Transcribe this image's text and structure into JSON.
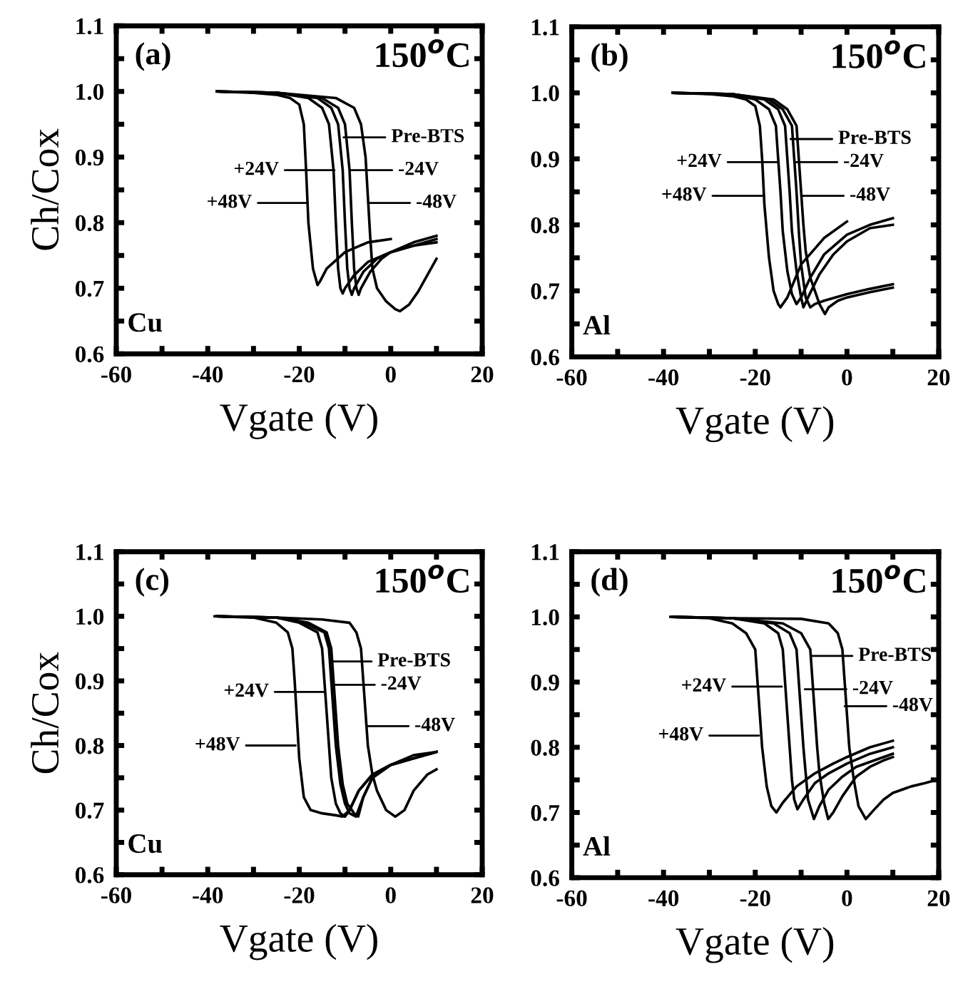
{
  "chart_data": [
    {
      "type": "line",
      "title": "(a)",
      "subtitle": "150$^{o}$C",
      "xlabel": "Vgate (V)",
      "ylabel": "Ch/Cox",
      "xlim": [
        -60,
        20
      ],
      "ylim": [
        0.6,
        1.1
      ],
      "xticks": [
        -60,
        {
          "value": -50,
          "label": null
        },
        -40,
        {
          "value": -30,
          "label": null
        },
        -20,
        {
          "value": -10,
          "label": null
        },
        0,
        {
          "value": 10,
          "label": null
        },
        20
      ],
      "yticks": [
        {
          "value": 0.6,
          "label": "0.6"
        },
        {
          "value": 0.65,
          "label": null
        },
        {
          "value": 0.7,
          "label": "0.7"
        },
        {
          "value": 0.75,
          "label": null
        },
        {
          "value": 0.8,
          "label": "0.8"
        },
        {
          "value": 0.85,
          "label": null
        },
        {
          "value": 0.9,
          "label": "0.9"
        },
        {
          "value": 0.95,
          "label": null
        },
        {
          "value": 1.0,
          "label": "1.0"
        },
        {
          "value": 1.05,
          "label": null
        },
        {
          "value": 1.1,
          "label": "1.1"
        }
      ],
      "marker": "none",
      "line_style": "solid",
      "series": [
        {
          "color": "#000000",
          "x": [
            -38,
            -30,
            -25,
            -22,
            -20,
            -19,
            -18.5,
            -18,
            -17,
            -16,
            -15.5,
            -14,
            -10,
            -5,
            0
          ],
          "values": [
            1.0,
            0.998,
            0.995,
            0.99,
            0.98,
            0.95,
            0.88,
            0.8,
            0.73,
            0.705,
            0.71,
            0.73,
            0.755,
            0.77,
            0.775
          ]
        },
        {
          "color": "#000000",
          "x": [
            -38,
            -25,
            -18,
            -15,
            -13.5,
            -12.5,
            -12,
            -11.5,
            -11,
            -10.5,
            -10,
            -8,
            -5,
            0,
            5,
            10
          ],
          "values": [
            1.0,
            0.998,
            0.99,
            0.975,
            0.95,
            0.88,
            0.8,
            0.73,
            0.7,
            0.692,
            0.7,
            0.72,
            0.74,
            0.755,
            0.765,
            0.77
          ]
        },
        {
          "color": "#000000",
          "x": [
            -38,
            -25,
            -16,
            -13,
            -11.5,
            -10.5,
            -10,
            -9.5,
            -9,
            -8.5,
            -8,
            -6,
            -3,
            0,
            5,
            10
          ],
          "values": [
            1.0,
            0.998,
            0.99,
            0.975,
            0.95,
            0.88,
            0.8,
            0.73,
            0.7,
            0.69,
            0.7,
            0.725,
            0.745,
            0.755,
            0.765,
            0.775
          ]
        },
        {
          "color": "#000000",
          "x": [
            -38,
            -25,
            -15,
            -11.5,
            -10,
            -9,
            -8.5,
            -8,
            -7.5,
            -7,
            -6.5,
            -4.5,
            -2,
            0,
            5,
            10
          ],
          "values": [
            1.0,
            0.998,
            0.99,
            0.975,
            0.95,
            0.88,
            0.8,
            0.73,
            0.7,
            0.69,
            0.7,
            0.725,
            0.745,
            0.755,
            0.77,
            0.78
          ]
        },
        {
          "color": "#000000",
          "x": [
            -38,
            -25,
            -12,
            -8,
            -6.5,
            -5.5,
            -5,
            -4.5,
            -4,
            -3,
            -1,
            1,
            2,
            4,
            6,
            8,
            10
          ],
          "values": [
            1.0,
            0.998,
            0.99,
            0.975,
            0.95,
            0.9,
            0.84,
            0.78,
            0.73,
            0.7,
            0.68,
            0.668,
            0.665,
            0.675,
            0.695,
            0.72,
            0.745
          ]
        }
      ],
      "annotations": [
        "Cu",
        {
          "text": "Pre-BTS",
          "x": -10.3,
          "y": 0.93
        },
        {
          "text": "+24V",
          "x": -12.3,
          "y": 0.88
        },
        {
          "text": "-24V",
          "x": -8.8,
          "y": 0.88
        },
        {
          "text": "+48V",
          "x": -18.2,
          "y": 0.83
        },
        {
          "text": "-48V",
          "x": -4.9,
          "y": 0.83
        }
      ]
    },
    {
      "type": "line",
      "title": "(b)",
      "subtitle": "150$^{o}$C",
      "xlabel": "Vgate (V)",
      "xlim": [
        -60,
        20
      ],
      "ylim": [
        0.6,
        1.1
      ],
      "xticks": [
        -60,
        {
          "value": -50,
          "label": null
        },
        -40,
        {
          "value": -30,
          "label": null
        },
        -20,
        {
          "value": -10,
          "label": null
        },
        0,
        {
          "value": 10,
          "label": null
        },
        20
      ],
      "yticks": [
        {
          "value": 0.6,
          "label": "0.6"
        },
        {
          "value": 0.65,
          "label": null
        },
        {
          "value": 0.7,
          "label": "0.7"
        },
        {
          "value": 0.75,
          "label": null
        },
        {
          "value": 0.8,
          "label": "0.8"
        },
        {
          "value": 0.85,
          "label": null
        },
        {
          "value": 0.9,
          "label": "0.9"
        },
        {
          "value": 0.95,
          "label": null
        },
        {
          "value": 1.0,
          "label": "1.0"
        },
        {
          "value": 1.05,
          "label": null
        },
        {
          "value": 1.1,
          "label": "1.1"
        }
      ],
      "marker": "none",
      "line_style": "solid",
      "series": [
        {
          "color": "#000000",
          "x": [
            -38,
            -30,
            -25,
            -22,
            -20,
            -19,
            -18.5,
            -18,
            -17,
            -16,
            -15,
            -14.5,
            -13,
            -10,
            -5,
            0
          ],
          "values": [
            1.0,
            0.998,
            0.995,
            0.99,
            0.98,
            0.95,
            0.9,
            0.83,
            0.75,
            0.7,
            0.68,
            0.675,
            0.69,
            0.74,
            0.78,
            0.805
          ]
        },
        {
          "color": "#000000",
          "x": [
            -38,
            -25,
            -20,
            -17,
            -15.5,
            -15,
            -14.5,
            -14,
            -13,
            -12,
            -11,
            -10,
            -8,
            -5,
            0,
            5,
            10
          ],
          "values": [
            1.0,
            0.998,
            0.99,
            0.975,
            0.95,
            0.9,
            0.85,
            0.79,
            0.73,
            0.695,
            0.68,
            0.69,
            0.72,
            0.755,
            0.785,
            0.8,
            0.81
          ]
        },
        {
          "color": "#000000",
          "x": [
            -38,
            -25,
            -18,
            -15,
            -13.5,
            -13,
            -12.5,
            -12,
            -11,
            -10,
            -9.5,
            -8.5,
            -6,
            -3,
            0,
            5,
            10
          ],
          "values": [
            1.0,
            0.998,
            0.99,
            0.975,
            0.95,
            0.9,
            0.85,
            0.79,
            0.73,
            0.69,
            0.675,
            0.69,
            0.725,
            0.755,
            0.775,
            0.795,
            0.8
          ]
        },
        {
          "color": "#000000",
          "x": [
            -38,
            -25,
            -17,
            -14,
            -12,
            -11.5,
            -11,
            -10.5,
            -10,
            -9,
            -8,
            -7,
            -5,
            0,
            5,
            10
          ],
          "values": [
            1.0,
            0.998,
            0.99,
            0.975,
            0.95,
            0.9,
            0.85,
            0.79,
            0.74,
            0.69,
            0.675,
            0.68,
            0.685,
            0.695,
            0.703,
            0.71
          ]
        },
        {
          "color": "#000000",
          "x": [
            -38,
            -25,
            -16,
            -13,
            -11,
            -10.5,
            -10,
            -9.5,
            -9,
            -8,
            -6,
            -4.8,
            -4,
            -2,
            0,
            5,
            10
          ],
          "values": [
            1.0,
            0.998,
            0.99,
            0.975,
            0.95,
            0.9,
            0.85,
            0.8,
            0.76,
            0.72,
            0.68,
            0.665,
            0.675,
            0.685,
            0.69,
            0.698,
            0.705
          ]
        }
      ],
      "annotations": [
        "Al",
        {
          "text": "Pre-BTS",
          "x": -12.3,
          "y": 0.93
        },
        {
          "text": "+24V",
          "x": -15.2,
          "y": 0.895
        },
        {
          "text": "-24V",
          "x": -11.2,
          "y": 0.895
        },
        {
          "text": "+48V",
          "x": -18.5,
          "y": 0.844
        },
        {
          "text": "-48V",
          "x": -9.8,
          "y": 0.844
        }
      ]
    },
    {
      "type": "line",
      "title": "(c)",
      "subtitle": "150$^{o}$C",
      "xlabel": "Vgate (V)",
      "ylabel": "Ch/Cox",
      "xlim": [
        -60,
        20
      ],
      "ylim": [
        0.6,
        1.1
      ],
      "xticks": [
        -60,
        {
          "value": -50,
          "label": null
        },
        -40,
        {
          "value": -30,
          "label": null
        },
        -20,
        {
          "value": -10,
          "label": null
        },
        0,
        {
          "value": 10,
          "label": null
        },
        20
      ],
      "yticks": [
        {
          "value": 0.6,
          "label": "0.6"
        },
        {
          "value": 0.65,
          "label": null
        },
        {
          "value": 0.7,
          "label": "0.7"
        },
        {
          "value": 0.75,
          "label": null
        },
        {
          "value": 0.8,
          "label": "0.8"
        },
        {
          "value": 0.85,
          "label": null
        },
        {
          "value": 0.9,
          "label": "0.9"
        },
        {
          "value": 0.95,
          "label": null
        },
        {
          "value": 1.0,
          "label": "1.0"
        },
        {
          "value": 1.05,
          "label": null
        },
        {
          "value": 1.1,
          "label": "1.1"
        }
      ],
      "marker": "none",
      "line_style": "solid",
      "series": [
        {
          "color": "#000000",
          "x": [
            -38.5,
            -30,
            -25,
            -22.5,
            -21.5,
            -21,
            -20.5,
            -20,
            -19,
            -17.5,
            -15,
            -12,
            -10.5,
            -9,
            -7,
            -4,
            0,
            5,
            10
          ],
          "values": [
            1.0,
            0.998,
            0.99,
            0.975,
            0.95,
            0.9,
            0.84,
            0.78,
            0.72,
            0.7,
            0.695,
            0.692,
            0.69,
            0.7,
            0.73,
            0.755,
            0.77,
            0.78,
            0.79
          ]
        },
        {
          "color": "#000000",
          "x": [
            -38,
            -25,
            -20,
            -16,
            -15,
            -14.5,
            -14,
            -13.5,
            -13,
            -12,
            -11,
            -10,
            -9,
            -7,
            -4,
            0,
            5,
            10
          ],
          "values": [
            1.0,
            0.998,
            0.99,
            0.975,
            0.95,
            0.9,
            0.85,
            0.8,
            0.75,
            0.71,
            0.695,
            0.69,
            0.7,
            0.73,
            0.755,
            0.77,
            0.78,
            0.79
          ]
        },
        {
          "color": "#000000",
          "x": [
            -38,
            -25,
            -19,
            -14.5,
            -13.5,
            -13,
            -12.5,
            -12,
            -11,
            -10,
            -9,
            -7.6,
            -6,
            -4,
            0,
            5,
            10
          ],
          "values": [
            1.0,
            0.998,
            0.99,
            0.975,
            0.95,
            0.9,
            0.85,
            0.8,
            0.74,
            0.71,
            0.695,
            0.69,
            0.72,
            0.75,
            0.77,
            0.78,
            0.79
          ]
        },
        {
          "color": "#000000",
          "x": [
            -38,
            -25,
            -18,
            -14,
            -13,
            -12.5,
            -12,
            -11.5,
            -10.5,
            -9.5,
            -8,
            -7.1,
            -6,
            -4,
            0,
            5,
            10
          ],
          "values": [
            1.0,
            0.998,
            0.99,
            0.975,
            0.95,
            0.9,
            0.85,
            0.8,
            0.74,
            0.71,
            0.695,
            0.69,
            0.72,
            0.75,
            0.77,
            0.785,
            0.79
          ]
        },
        {
          "color": "#000000",
          "x": [
            -38,
            -25,
            -15,
            -9,
            -7.5,
            -6.5,
            -6,
            -5.5,
            -5,
            -4,
            -3,
            -1,
            1,
            3,
            5,
            8,
            10
          ],
          "values": [
            1.0,
            0.998,
            0.995,
            0.99,
            0.975,
            0.95,
            0.9,
            0.85,
            0.8,
            0.755,
            0.73,
            0.7,
            0.69,
            0.7,
            0.73,
            0.755,
            0.763
          ]
        }
      ],
      "annotations": [
        "Cu",
        {
          "text": "Pre-BTS",
          "x": -13.3,
          "y": 0.93
        },
        {
          "text": "+24V",
          "x": -14.5,
          "y": 0.883
        },
        {
          "text": "-24V",
          "x": -12.6,
          "y": 0.894
        },
        {
          "text": "+48V",
          "x": -20.8,
          "y": 0.8
        },
        {
          "text": "-48V",
          "x": -5.2,
          "y": 0.83
        }
      ]
    },
    {
      "type": "line",
      "title": "(d)",
      "subtitle": "150$^{o}$C",
      "xlabel": "Vgate (V)",
      "xlim": [
        -60,
        20
      ],
      "ylim": [
        0.6,
        1.1
      ],
      "xticks": [
        -60,
        {
          "value": -50,
          "label": null
        },
        -40,
        {
          "value": -30,
          "label": null
        },
        -20,
        {
          "value": -10,
          "label": null
        },
        0,
        {
          "value": 10,
          "label": null
        },
        20
      ],
      "yticks": [
        {
          "value": 0.6,
          "label": "0.6"
        },
        {
          "value": 0.65,
          "label": null
        },
        {
          "value": 0.7,
          "label": "0.7"
        },
        {
          "value": 0.75,
          "label": null
        },
        {
          "value": 0.8,
          "label": "0.8"
        },
        {
          "value": 0.85,
          "label": null
        },
        {
          "value": 0.9,
          "label": "0.9"
        },
        {
          "value": 0.95,
          "label": null
        },
        {
          "value": 1.0,
          "label": "1.0"
        },
        {
          "value": 1.05,
          "label": null
        },
        {
          "value": 1.1,
          "label": "1.1"
        }
      ],
      "marker": "none",
      "line_style": "solid",
      "series": [
        {
          "color": "#000000",
          "x": [
            -38.5,
            -30,
            -25,
            -22,
            -20,
            -19.5,
            -19,
            -18.5,
            -17.5,
            -16.5,
            -15.4,
            -14,
            -11,
            -7,
            -3,
            0,
            5,
            10
          ],
          "values": [
            1.0,
            0.998,
            0.99,
            0.975,
            0.95,
            0.9,
            0.85,
            0.8,
            0.74,
            0.71,
            0.7,
            0.715,
            0.74,
            0.76,
            0.775,
            0.785,
            0.8,
            0.81
          ]
        },
        {
          "color": "#000000",
          "x": [
            -38,
            -25,
            -18,
            -15,
            -14,
            -13.5,
            -13,
            -12.5,
            -12,
            -11.5,
            -10.8,
            -9.5,
            -7,
            -4,
            0,
            5,
            10
          ],
          "values": [
            1.0,
            0.998,
            0.99,
            0.975,
            0.95,
            0.9,
            0.85,
            0.8,
            0.75,
            0.72,
            0.705,
            0.72,
            0.745,
            0.76,
            0.775,
            0.79,
            0.8
          ]
        },
        {
          "color": "#000000",
          "x": [
            -38,
            -25,
            -16,
            -12.5,
            -11,
            -10.5,
            -10,
            -9.5,
            -9,
            -8.5,
            -7.2,
            -6,
            -4,
            -1,
            2,
            6,
            10
          ],
          "values": [
            1.0,
            0.998,
            0.99,
            0.975,
            0.95,
            0.9,
            0.85,
            0.8,
            0.76,
            0.72,
            0.69,
            0.71,
            0.735,
            0.755,
            0.77,
            0.78,
            0.79
          ]
        },
        {
          "color": "#000000",
          "x": [
            -38,
            -25,
            -14,
            -10,
            -8,
            -7.5,
            -7,
            -6.5,
            -6,
            -5,
            -4.1,
            -3,
            -1,
            2,
            5,
            8,
            10
          ],
          "values": [
            1.0,
            0.998,
            0.99,
            0.975,
            0.95,
            0.9,
            0.85,
            0.8,
            0.76,
            0.715,
            0.69,
            0.7,
            0.725,
            0.755,
            0.77,
            0.78,
            0.785
          ]
        },
        {
          "color": "#000000",
          "x": [
            -38,
            -25,
            -10,
            -4,
            -2,
            -1,
            -0.5,
            0,
            0.5,
            1.5,
            2.5,
            4.1,
            6,
            8,
            10,
            14,
            17,
            19.5
          ],
          "values": [
            1.0,
            0.998,
            0.997,
            0.99,
            0.975,
            0.95,
            0.9,
            0.85,
            0.8,
            0.75,
            0.71,
            0.69,
            0.705,
            0.72,
            0.73,
            0.74,
            0.745,
            0.75
          ]
        }
      ],
      "annotations": [
        "Al",
        {
          "text": "Pre-BTS",
          "x": -7.9,
          "y": 0.94
        },
        {
          "text": "+24V",
          "x": -14.2,
          "y": 0.893
        },
        {
          "text": "-24V",
          "x": -9.2,
          "y": 0.889
        },
        {
          "text": "+48V",
          "x": -19.2,
          "y": 0.818
        },
        {
          "text": "-48V",
          "x": -0.5,
          "y": 0.863
        }
      ]
    }
  ]
}
